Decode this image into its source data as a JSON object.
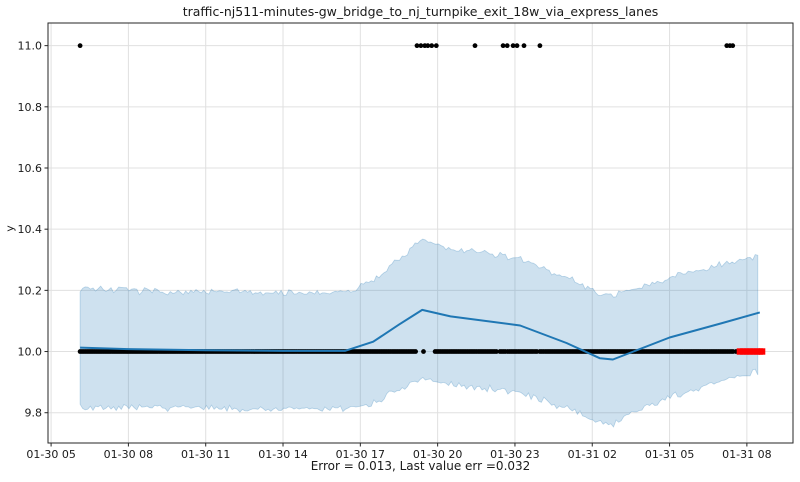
{
  "chart_data": {
    "type": "line",
    "title": "traffic-nj511-minutes-gw_bridge_to_nj_turnpike_exit_18w_via_express_lanes",
    "xlabel": "Error = 0.013, Last value err =0.032",
    "ylabel": "y",
    "grid": true,
    "legend": "none",
    "xlim_t": [
      -0.12,
      28.79
    ],
    "ylim": [
      9.701,
      11.074
    ],
    "x_ticks": [
      {
        "t": 0,
        "label": "01-30 05"
      },
      {
        "t": 3,
        "label": "01-30 08"
      },
      {
        "t": 6,
        "label": "01-30 11"
      },
      {
        "t": 9,
        "label": "01-30 14"
      },
      {
        "t": 12,
        "label": "01-30 17"
      },
      {
        "t": 15,
        "label": "01-30 20"
      },
      {
        "t": 18,
        "label": "01-30 23"
      },
      {
        "t": 21,
        "label": "01-31 02"
      },
      {
        "t": 24,
        "label": "01-31 05"
      },
      {
        "t": 27,
        "label": "01-31 08"
      }
    ],
    "y_ticks": [
      {
        "v": 9.8,
        "label": "9.8"
      },
      {
        "v": 10.0,
        "label": "10.0"
      },
      {
        "v": 10.2,
        "label": "10.2"
      },
      {
        "v": 10.4,
        "label": "10.4"
      },
      {
        "v": 10.6,
        "label": "10.6"
      },
      {
        "v": 10.8,
        "label": "10.8"
      },
      {
        "v": 11.0,
        "label": "11.0"
      }
    ],
    "colors": {
      "forecast_line": "#1f77b4",
      "band_fill": "#1f77b4",
      "actual_dots": "#000000",
      "recent_dots": "#ff0000",
      "grid": "#e0e0e0",
      "spine": "#262626",
      "text": "#1a1a1a"
    },
    "series": {
      "actual": {
        "value": 10.0,
        "dot_step_t": 0.07,
        "segments_t": [
          [
            1.125,
            14.2
          ],
          [
            14.9,
            17.34
          ],
          [
            17.42,
            17.5
          ],
          [
            17.56,
            17.67
          ],
          [
            17.72,
            18.7
          ],
          [
            18.78,
            18.88
          ],
          [
            18.97,
            26.5
          ],
          [
            26.58,
            26.67
          ]
        ],
        "isolated_t": [
          14.45
        ]
      },
      "outliers": {
        "value": 11.0,
        "t": [
          1.125,
          14.2,
          14.35,
          14.5,
          14.62,
          14.77,
          14.95,
          16.45,
          17.54,
          17.7,
          17.93,
          18.08,
          18.35,
          18.97,
          26.22,
          26.34,
          26.45
        ]
      },
      "recent": {
        "value": 10.0,
        "t": [
          26.73,
          26.86,
          26.99,
          27.12,
          27.25,
          27.38,
          27.5,
          27.59
        ]
      },
      "forecast": {
        "points": [
          [
            1.125,
            10.013
          ],
          [
            3,
            10.008
          ],
          [
            6,
            10.004
          ],
          [
            9,
            10.002
          ],
          [
            11.4,
            10.002
          ],
          [
            12.5,
            10.032
          ],
          [
            13.5,
            10.088
          ],
          [
            14.4,
            10.136
          ],
          [
            15.5,
            10.115
          ],
          [
            18.2,
            10.085
          ],
          [
            20,
            10.028
          ],
          [
            21.3,
            9.978
          ],
          [
            21.8,
            9.974
          ],
          [
            22.6,
            10.0
          ],
          [
            24,
            10.046
          ],
          [
            26,
            10.092
          ],
          [
            27.5,
            10.128
          ]
        ]
      },
      "band": {
        "opacity": 0.22,
        "halfwidth_t": [
          [
            1.125,
            0.195
          ],
          [
            5,
            0.19
          ],
          [
            9,
            0.19
          ],
          [
            11.4,
            0.19
          ],
          [
            13,
            0.208
          ],
          [
            14.4,
            0.225
          ],
          [
            16,
            0.222
          ],
          [
            18.2,
            0.215
          ],
          [
            21.5,
            0.213
          ],
          [
            23,
            0.2
          ],
          [
            25,
            0.192
          ],
          [
            27.5,
            0.19
          ]
        ],
        "noise_amp": 0.014,
        "sample_step_t": 0.1
      }
    }
  }
}
